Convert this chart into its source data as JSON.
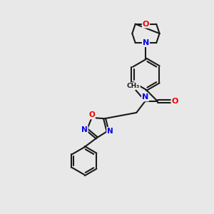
{
  "bg_color": "#e8e8e8",
  "bond_color": "#1a1a1a",
  "N_color": "#0000ee",
  "O_color": "#ee0000",
  "lw": 1.5,
  "dbo": 0.055,
  "xlim": [
    0,
    10
  ],
  "ylim": [
    0,
    10
  ]
}
